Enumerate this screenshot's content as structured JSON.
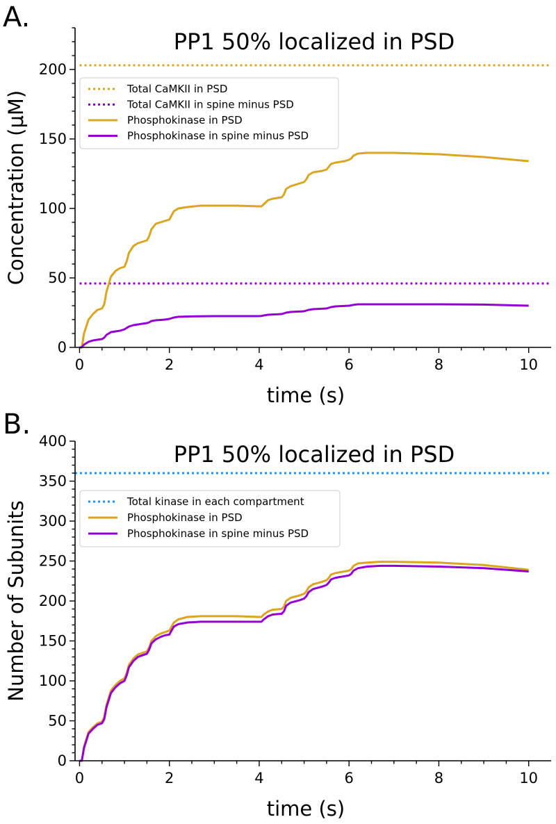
{
  "figure": {
    "panels": [
      {
        "letter": "A."
      },
      {
        "letter": "B."
      }
    ]
  },
  "chart_data": [
    {
      "type": "line",
      "panel": "A.",
      "title": "PP1 50% localized in PSD",
      "xlabel": "time (s)",
      "ylabel": "Concentration (μM)",
      "xlim": [
        -0.1,
        10.5
      ],
      "ylim": [
        0,
        230
      ],
      "xticks": [
        0,
        2,
        4,
        6,
        8,
        10
      ],
      "yticks": [
        0,
        50,
        100,
        150,
        200
      ],
      "grid": false,
      "legend": "upper-left",
      "series": [
        {
          "name": "Total CaMKII in PSD",
          "color": "#daa520",
          "style": "dotted",
          "x": [
            0,
            10.5
          ],
          "y": [
            203,
            203
          ]
        },
        {
          "name": "Total CaMKII in spine minus PSD",
          "color": "#9400d3",
          "style": "dotted",
          "x": [
            0,
            10.5
          ],
          "y": [
            46,
            46
          ]
        },
        {
          "name": "Phosphokinase in PSD",
          "color": "#daa520",
          "style": "solid",
          "x": [
            0,
            0.05,
            0.1,
            0.2,
            0.3,
            0.4,
            0.5,
            0.55,
            0.6,
            0.7,
            0.8,
            0.9,
            1.0,
            1.05,
            1.1,
            1.2,
            1.3,
            1.4,
            1.5,
            1.55,
            1.6,
            1.7,
            1.8,
            1.9,
            2.0,
            2.05,
            2.1,
            2.2,
            2.4,
            2.7,
            3.0,
            3.5,
            4.0,
            4.05,
            4.1,
            4.2,
            4.3,
            4.5,
            4.55,
            4.6,
            4.7,
            4.9,
            5.0,
            5.05,
            5.1,
            5.2,
            5.4,
            5.5,
            5.55,
            5.6,
            5.7,
            5.9,
            6.0,
            6.05,
            6.1,
            6.2,
            6.4,
            6.7,
            7.0,
            8.0,
            9.0,
            10.0
          ],
          "y": [
            0,
            0,
            10,
            20,
            24,
            27,
            28,
            31,
            40,
            51,
            55,
            57,
            58,
            62,
            68,
            73,
            75,
            76,
            77,
            80,
            85,
            89,
            90,
            91,
            92,
            95,
            98,
            100,
            101,
            102,
            102,
            102,
            101.5,
            101.5,
            103,
            106,
            107,
            108,
            110,
            114,
            116,
            118,
            119,
            121,
            124,
            126,
            127,
            128,
            130,
            132,
            133,
            134,
            135,
            136,
            138,
            139.5,
            140,
            140,
            140,
            139,
            137,
            134
          ]
        },
        {
          "name": "Phosphokinase in spine minus PSD",
          "color": "#9400d3",
          "style": "solid",
          "x": [
            0,
            0.05,
            0.1,
            0.2,
            0.3,
            0.5,
            0.55,
            0.6,
            0.7,
            0.9,
            1.0,
            1.05,
            1.1,
            1.2,
            1.4,
            1.5,
            1.55,
            1.6,
            1.7,
            1.9,
            2.0,
            2.05,
            2.1,
            2.2,
            2.5,
            3.0,
            4.0,
            4.05,
            4.1,
            4.2,
            4.5,
            4.55,
            4.6,
            4.7,
            5.0,
            5.05,
            5.1,
            5.2,
            5.5,
            5.55,
            5.6,
            5.7,
            6.0,
            6.05,
            6.1,
            6.2,
            6.5,
            7.0,
            8.0,
            9.0,
            10.0
          ],
          "y": [
            0,
            0,
            2,
            4,
            5,
            6,
            7,
            9,
            11,
            12,
            13,
            14,
            15,
            16,
            17,
            17.5,
            18,
            19,
            19.5,
            20,
            20.5,
            21,
            21.5,
            22,
            22.3,
            22.5,
            22.5,
            22.6,
            23,
            23.5,
            24,
            24.5,
            25,
            25.5,
            26,
            26.5,
            27,
            27.5,
            28,
            28.5,
            29,
            29.5,
            30,
            30.3,
            30.6,
            31,
            31,
            31,
            31,
            30.8,
            30
          ]
        }
      ]
    },
    {
      "type": "line",
      "panel": "B.",
      "title": "PP1 50% localized in PSD",
      "xlabel": "time (s)",
      "ylabel": "Number of Subunits",
      "xlim": [
        -0.1,
        10.5
      ],
      "ylim": [
        0,
        400
      ],
      "xticks": [
        0,
        2,
        4,
        6,
        8,
        10
      ],
      "yticks": [
        0,
        50,
        100,
        150,
        200,
        250,
        300,
        350,
        400
      ],
      "grid": false,
      "legend": "upper-left",
      "series": [
        {
          "name": "Total kinase in each compartment",
          "color": "#1e90ff",
          "style": "dotted",
          "x": [
            -0.1,
            10.5
          ],
          "y": [
            360,
            360
          ]
        },
        {
          "name": "Phosphokinase in PSD",
          "color": "#daa520",
          "style": "solid",
          "x": [
            0,
            0.05,
            0.1,
            0.2,
            0.3,
            0.4,
            0.5,
            0.55,
            0.6,
            0.7,
            0.8,
            0.9,
            1.0,
            1.05,
            1.1,
            1.2,
            1.3,
            1.4,
            1.5,
            1.55,
            1.6,
            1.7,
            1.8,
            1.9,
            2.0,
            2.05,
            2.1,
            2.2,
            2.4,
            2.7,
            3.0,
            3.5,
            4.0,
            4.05,
            4.1,
            4.2,
            4.3,
            4.5,
            4.55,
            4.6,
            4.7,
            4.9,
            5.0,
            5.05,
            5.1,
            5.2,
            5.4,
            5.5,
            5.55,
            5.6,
            5.7,
            5.9,
            6.0,
            6.05,
            6.1,
            6.2,
            6.4,
            6.7,
            7.0,
            8.0,
            9.0,
            10.0
          ],
          "y": [
            0,
            0,
            18,
            36,
            42,
            47,
            49,
            55,
            70,
            88,
            95,
            100,
            103,
            110,
            120,
            128,
            133,
            135,
            137,
            142,
            150,
            156,
            159,
            161,
            163,
            168,
            173,
            177,
            180,
            181,
            181,
            181,
            180,
            180,
            183,
            187,
            189,
            190,
            193,
            200,
            204,
            207,
            209,
            212,
            217,
            221,
            224,
            226,
            229,
            233,
            235,
            237,
            238,
            240,
            244,
            247,
            248,
            249,
            249,
            248,
            245,
            239
          ]
        },
        {
          "name": "Phosphokinase in spine minus PSD",
          "color": "#9400d3",
          "style": "solid",
          "x": [
            0,
            0.05,
            0.1,
            0.2,
            0.3,
            0.4,
            0.5,
            0.55,
            0.6,
            0.7,
            0.8,
            0.9,
            1.0,
            1.05,
            1.1,
            1.2,
            1.3,
            1.4,
            1.5,
            1.55,
            1.6,
            1.7,
            1.8,
            1.9,
            2.0,
            2.05,
            2.1,
            2.2,
            2.4,
            2.7,
            3.0,
            3.5,
            4.0,
            4.05,
            4.1,
            4.2,
            4.3,
            4.5,
            4.55,
            4.6,
            4.7,
            4.9,
            5.0,
            5.05,
            5.1,
            5.2,
            5.4,
            5.5,
            5.55,
            5.6,
            5.7,
            5.9,
            6.0,
            6.05,
            6.1,
            6.2,
            6.4,
            6.7,
            7.0,
            8.0,
            9.0,
            10.0
          ],
          "y": [
            0,
            0,
            16,
            34,
            40,
            45,
            47,
            52,
            67,
            85,
            92,
            97,
            100,
            107,
            117,
            125,
            130,
            132,
            134,
            139,
            147,
            152,
            155,
            157,
            158,
            163,
            168,
            171,
            173,
            174,
            174,
            174,
            174,
            174,
            177,
            181,
            183,
            184,
            187,
            194,
            198,
            201,
            203,
            206,
            211,
            215,
            218,
            220,
            223,
            227,
            229,
            231,
            232,
            234,
            238,
            241,
            243,
            244,
            244,
            243,
            241,
            237
          ]
        }
      ]
    }
  ]
}
